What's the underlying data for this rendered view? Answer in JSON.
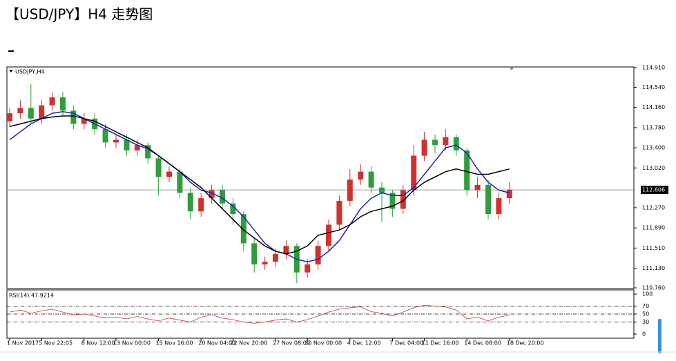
{
  "header": {
    "title": "【USD/JPY】H4 走势图"
  },
  "chart_data": {
    "type": "candlestick",
    "symbol": "USDJPY,H4",
    "categories": [
      "1 Nov 2017",
      null,
      null,
      "5 Nov 22:05",
      null,
      null,
      null,
      "8 Nov 12:00",
      null,
      null,
      "13 Nov 00:00",
      null,
      null,
      null,
      "15 Nov 16:00",
      null,
      null,
      null,
      "20 Nov 04:00",
      null,
      null,
      "22 Nov 20:00",
      null,
      null,
      null,
      "27 Nov 08:00",
      null,
      null,
      "30 Nov 00:00",
      null,
      null,
      null,
      "4 Dec 12:00",
      null,
      null,
      null,
      "7 Dec 04:00",
      null,
      null,
      "11 Dec 16:00",
      null,
      null,
      null,
      "14 Dec 08:00",
      null,
      null,
      null,
      "18 Dec 20:00"
    ],
    "open": [
      113.9,
      114.05,
      114.15,
      113.95,
      114.2,
      114.35,
      114.1,
      113.85,
      113.95,
      113.75,
      113.5,
      113.55,
      113.35,
      113.45,
      113.2,
      112.85,
      112.95,
      112.55,
      112.2,
      112.45,
      112.6,
      112.35,
      112.15,
      111.6,
      111.2,
      111.25,
      111.4,
      111.55,
      111.05,
      111.2,
      111.55,
      111.95,
      112.4,
      112.8,
      112.95,
      112.65,
      112.55,
      112.25,
      112.6,
      113.25,
      113.55,
      113.45,
      113.6,
      113.35,
      112.6,
      112.7,
      112.15,
      112.45
    ],
    "high": [
      114.15,
      114.3,
      114.6,
      114.3,
      114.45,
      114.45,
      114.2,
      114.05,
      114.05,
      113.85,
      113.65,
      113.65,
      113.55,
      113.5,
      113.25,
      113.05,
      113.0,
      112.65,
      112.55,
      112.7,
      112.7,
      112.45,
      112.2,
      111.7,
      111.35,
      111.5,
      111.65,
      111.6,
      111.3,
      111.65,
      112.05,
      112.5,
      113.0,
      113.1,
      113.05,
      112.75,
      112.6,
      112.7,
      113.45,
      113.7,
      113.65,
      113.75,
      113.65,
      113.4,
      112.85,
      112.8,
      112.55,
      112.75
    ],
    "low": [
      113.8,
      113.95,
      113.85,
      113.85,
      114.1,
      114.0,
      113.75,
      113.75,
      113.65,
      113.4,
      113.4,
      113.25,
      113.25,
      113.1,
      112.5,
      112.75,
      112.45,
      112.05,
      112.1,
      112.35,
      112.25,
      111.95,
      111.45,
      111.05,
      111.1,
      111.15,
      111.3,
      110.85,
      110.95,
      111.1,
      111.45,
      111.85,
      112.3,
      112.7,
      112.55,
      112.0,
      112.1,
      112.15,
      112.5,
      113.15,
      113.3,
      113.35,
      113.25,
      112.5,
      112.45,
      112.05,
      112.05,
      112.35
    ],
    "close": [
      114.05,
      114.15,
      113.95,
      114.2,
      114.35,
      114.1,
      113.85,
      113.95,
      113.75,
      113.5,
      113.55,
      113.35,
      113.45,
      113.2,
      112.85,
      112.95,
      112.55,
      112.2,
      112.45,
      112.6,
      112.35,
      112.15,
      111.6,
      111.2,
      111.25,
      111.4,
      111.55,
      111.05,
      111.2,
      111.55,
      111.95,
      112.4,
      112.8,
      112.95,
      112.65,
      112.55,
      112.25,
      112.6,
      113.25,
      113.55,
      113.45,
      113.6,
      113.35,
      112.6,
      112.7,
      112.15,
      112.45,
      112.61
    ],
    "up_color": "#d0312d",
    "down_color": "#2e9e3a",
    "series": [
      {
        "color": "#1f1fc4",
        "values": [
          113.55,
          113.7,
          113.85,
          113.95,
          114.05,
          114.08,
          114.05,
          113.95,
          113.85,
          113.75,
          113.65,
          113.55,
          113.45,
          113.38,
          113.25,
          113.1,
          112.95,
          112.75,
          112.6,
          112.55,
          112.45,
          112.3,
          112.1,
          111.85,
          111.6,
          111.45,
          111.4,
          111.3,
          111.25,
          111.3,
          111.45,
          111.65,
          111.95,
          112.25,
          112.45,
          112.55,
          112.5,
          112.5,
          112.65,
          112.9,
          113.15,
          113.4,
          113.45,
          113.3,
          113.0,
          112.75,
          112.6,
          112.55
        ]
      },
      {
        "color": "#000000",
        "values": [
          113.8,
          113.85,
          113.9,
          113.95,
          113.98,
          114.0,
          114.0,
          113.95,
          113.9,
          113.8,
          113.7,
          113.6,
          113.5,
          113.4,
          113.25,
          113.1,
          112.95,
          112.8,
          112.65,
          112.45,
          112.25,
          112.05,
          111.85,
          111.7,
          111.55,
          111.45,
          111.4,
          111.45,
          111.55,
          111.75,
          111.8,
          111.85,
          111.95,
          112.1,
          112.2,
          112.25,
          112.3,
          112.4,
          112.6,
          112.75,
          112.85,
          112.95,
          113.0,
          112.95,
          112.9,
          112.9,
          112.95,
          113.0
        ]
      }
    ],
    "ylim": [
      110.76,
      114.91
    ],
    "yticks": [
      {
        "value": 114.91,
        "label": "114.910"
      },
      {
        "value": 114.54,
        "label": "114.540"
      },
      {
        "value": 114.16,
        "label": "114.160"
      },
      {
        "value": 113.78,
        "label": "113.780"
      },
      {
        "value": 113.4,
        "label": "113.400"
      },
      {
        "value": 113.02,
        "label": "113.020"
      },
      {
        "value": 112.27,
        "label": "112.270"
      },
      {
        "value": 111.89,
        "label": "111.890"
      },
      {
        "value": 111.51,
        "label": "111.510"
      },
      {
        "value": 111.13,
        "label": "111.130"
      },
      {
        "value": 110.76,
        "label": "110.760"
      }
    ],
    "current_price": {
      "value": 112.606,
      "label": "112.606"
    },
    "rsi": {
      "title": "RSI(14) 47.9214",
      "color": "#d0312d",
      "values": [
        55,
        60,
        52,
        58,
        62,
        55,
        48,
        50,
        45,
        40,
        42,
        38,
        44,
        38,
        33,
        40,
        35,
        30,
        42,
        48,
        40,
        36,
        30,
        27,
        30,
        35,
        38,
        30,
        36,
        45,
        55,
        62,
        66,
        68,
        56,
        52,
        45,
        55,
        66,
        72,
        70,
        68,
        60,
        38,
        42,
        33,
        42,
        47.9214
      ],
      "ylim": [
        0,
        100
      ],
      "yticks": [
        100,
        70,
        50,
        30,
        0
      ],
      "levels": [
        70,
        50,
        30
      ]
    }
  }
}
